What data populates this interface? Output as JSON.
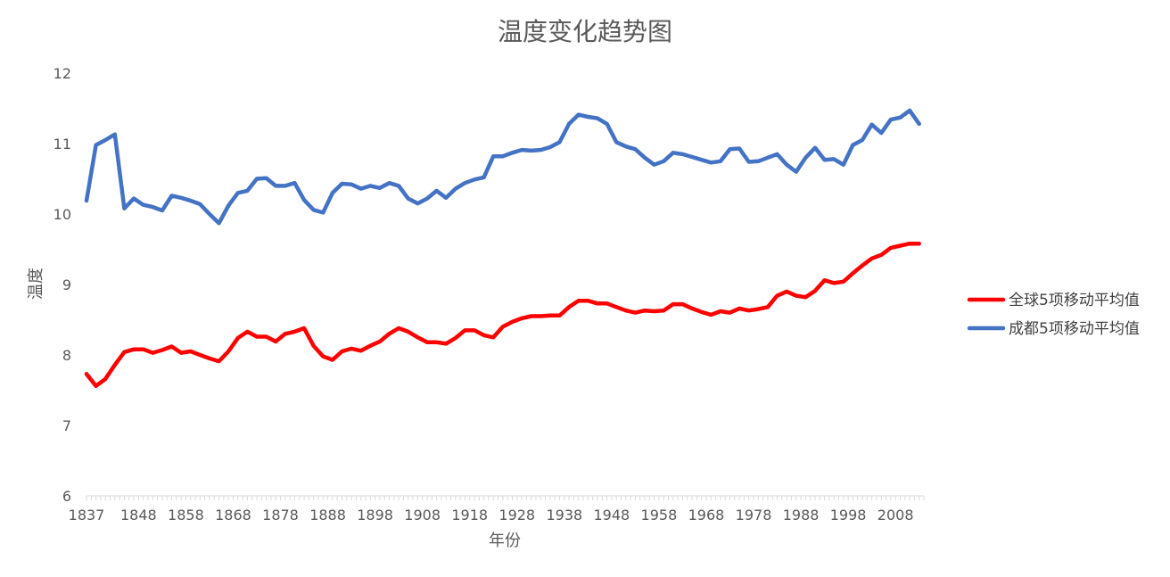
{
  "chart_data": {
    "type": "line",
    "title": "温度变化趋势图",
    "xlabel": "年份",
    "ylabel": "温度",
    "xlim": [
      1837,
      2014
    ],
    "ylim": [
      6,
      12
    ],
    "x_ticks": [
      "1837",
      "1848",
      "1858",
      "1868",
      "1878",
      "1888",
      "1898",
      "1908",
      "1918",
      "1928",
      "1938",
      "1948",
      "1958",
      "1968",
      "1978",
      "1988",
      "1998",
      "2008"
    ],
    "y_ticks": [
      "6",
      "7",
      "8",
      "9",
      "10",
      "11",
      "12"
    ],
    "grid": false,
    "legend_position": "right",
    "x": [
      1837,
      1839,
      1841,
      1843,
      1845,
      1847,
      1849,
      1851,
      1853,
      1855,
      1857,
      1859,
      1861,
      1863,
      1865,
      1867,
      1869,
      1871,
      1873,
      1875,
      1877,
      1879,
      1881,
      1883,
      1885,
      1887,
      1889,
      1891,
      1893,
      1895,
      1897,
      1899,
      1901,
      1903,
      1905,
      1907,
      1909,
      1911,
      1913,
      1915,
      1917,
      1919,
      1921,
      1923,
      1925,
      1927,
      1929,
      1931,
      1933,
      1935,
      1937,
      1939,
      1941,
      1943,
      1945,
      1947,
      1949,
      1951,
      1953,
      1955,
      1957,
      1959,
      1961,
      1963,
      1965,
      1967,
      1969,
      1971,
      1973,
      1975,
      1977,
      1979,
      1981,
      1983,
      1985,
      1987,
      1989,
      1991,
      1993,
      1995,
      1997,
      1999,
      2001,
      2003,
      2005,
      2007,
      2009,
      2011,
      2013
    ],
    "series": [
      {
        "name": "全球5项移动平均值",
        "color": "#ff0000",
        "values": [
          7.73,
          7.56,
          7.66,
          7.86,
          8.04,
          8.08,
          8.08,
          8.03,
          8.07,
          8.12,
          8.03,
          8.05,
          8.0,
          7.95,
          7.91,
          8.05,
          8.24,
          8.33,
          8.26,
          8.26,
          8.19,
          8.3,
          8.33,
          8.38,
          8.13,
          7.98,
          7.93,
          8.05,
          8.09,
          8.06,
          8.13,
          8.19,
          8.3,
          8.38,
          8.33,
          8.25,
          8.18,
          8.18,
          8.16,
          8.24,
          8.35,
          8.35,
          8.28,
          8.25,
          8.4,
          8.47,
          8.52,
          8.55,
          8.55,
          8.56,
          8.56,
          8.68,
          8.77,
          8.77,
          8.73,
          8.73,
          8.68,
          8.63,
          8.6,
          8.63,
          8.62,
          8.63,
          8.72,
          8.72,
          8.66,
          8.61,
          8.57,
          8.62,
          8.6,
          8.66,
          8.63,
          8.65,
          8.68,
          8.84,
          8.9,
          8.84,
          8.82,
          8.91,
          9.06,
          9.02,
          9.04,
          9.16,
          9.27,
          9.37,
          9.42,
          9.52,
          9.55,
          9.58,
          9.58
        ]
      },
      {
        "name": "成都5项移动平均值",
        "color": "#4472c4",
        "values": [
          10.19,
          10.98,
          11.05,
          11.13,
          10.08,
          10.22,
          10.13,
          10.1,
          10.05,
          10.26,
          10.23,
          10.19,
          10.14,
          10.0,
          9.87,
          10.12,
          10.3,
          10.33,
          10.5,
          10.51,
          10.4,
          10.4,
          10.44,
          10.2,
          10.06,
          10.02,
          10.3,
          10.43,
          10.42,
          10.36,
          10.4,
          10.37,
          10.44,
          10.4,
          10.22,
          10.15,
          10.22,
          10.33,
          10.23,
          10.36,
          10.44,
          10.49,
          10.52,
          10.82,
          10.82,
          10.87,
          10.91,
          10.9,
          10.91,
          10.95,
          11.02,
          11.28,
          11.41,
          11.38,
          11.36,
          11.28,
          11.02,
          10.96,
          10.92,
          10.8,
          10.7,
          10.75,
          10.87,
          10.85,
          10.81,
          10.77,
          10.73,
          10.75,
          10.92,
          10.93,
          10.74,
          10.75,
          10.8,
          10.85,
          10.7,
          10.6,
          10.8,
          10.94,
          10.77,
          10.78,
          10.7,
          10.98,
          11.05,
          11.27,
          11.15,
          11.34,
          11.37,
          11.47,
          11.28
        ]
      }
    ]
  }
}
